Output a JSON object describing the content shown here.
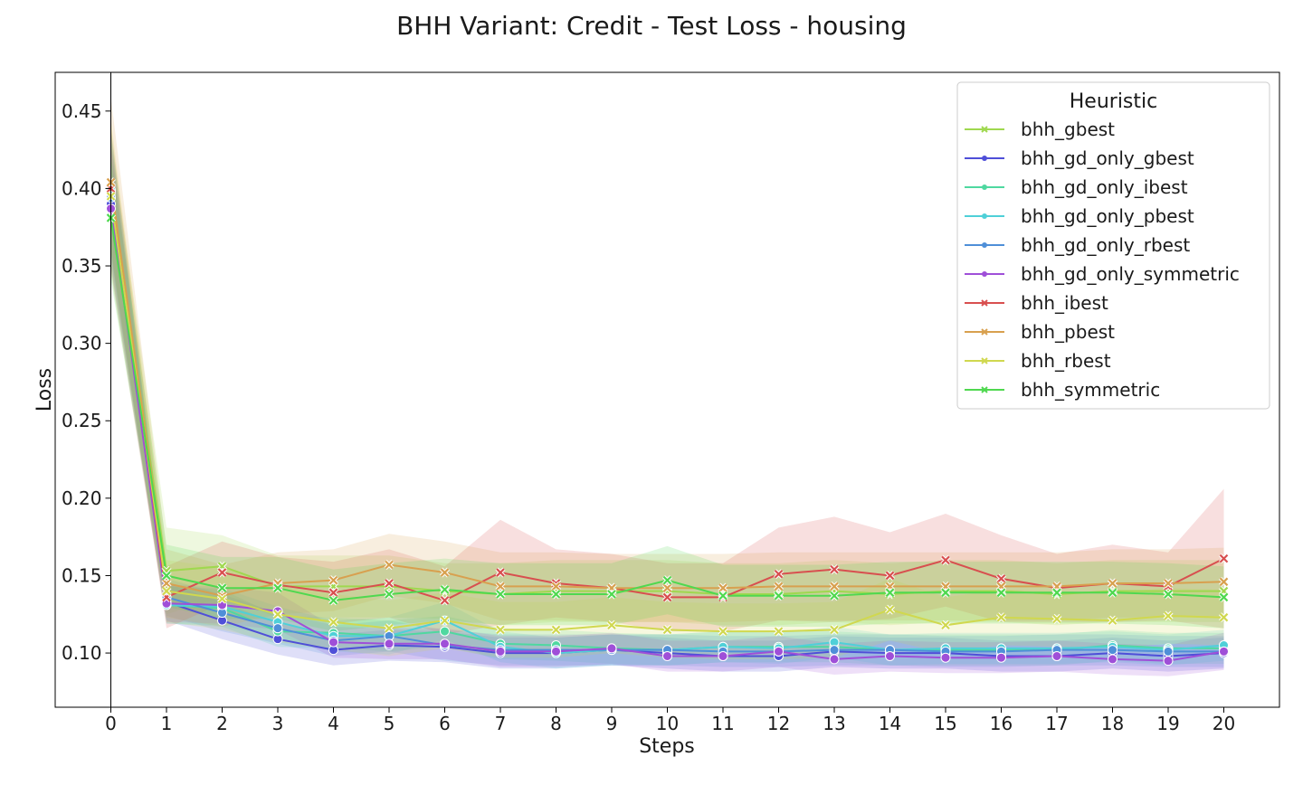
{
  "chart_data": {
    "type": "line",
    "title": "BHH Variant: Credit - Test Loss - housing",
    "xlabel": "Steps",
    "ylabel": "Loss",
    "x": [
      0,
      1,
      2,
      3,
      4,
      5,
      6,
      7,
      8,
      9,
      10,
      11,
      12,
      13,
      14,
      15,
      16,
      17,
      18,
      19,
      20
    ],
    "xlim": [
      -1,
      21
    ],
    "ylim": [
      0.065,
      0.475
    ],
    "yticks": [
      0.1,
      0.15,
      0.2,
      0.25,
      0.3,
      0.35,
      0.4,
      0.45
    ],
    "ytick_labels": [
      "0.10",
      "0.15",
      "0.20",
      "0.25",
      "0.30",
      "0.35",
      "0.40",
      "0.45"
    ],
    "xtick_labels": [
      "0",
      "1",
      "2",
      "3",
      "4",
      "5",
      "6",
      "7",
      "8",
      "9",
      "10",
      "11",
      "12",
      "13",
      "14",
      "15",
      "16",
      "17",
      "18",
      "19",
      "20"
    ],
    "grid": false,
    "legend": {
      "title": "Heuristic",
      "placement": "top-right"
    },
    "series": [
      {
        "name": "bhh_gbest",
        "color": "#9fd84f",
        "marker": "x",
        "values": [
          0.397,
          0.153,
          0.156,
          0.143,
          0.143,
          0.143,
          0.14,
          0.138,
          0.14,
          0.14,
          0.14,
          0.138,
          0.138,
          0.14,
          0.138,
          0.14,
          0.14,
          0.138,
          0.14,
          0.14,
          0.14
        ],
        "band": [
          0.035,
          0.028,
          0.02,
          0.02,
          0.02,
          0.02,
          0.018,
          0.02,
          0.02,
          0.02,
          0.02,
          0.02,
          0.02,
          0.02,
          0.02,
          0.02,
          0.02,
          0.02,
          0.02,
          0.02,
          0.02
        ]
      },
      {
        "name": "bhh_gd_only_gbest",
        "color": "#4f4fd8",
        "marker": "o",
        "values": [
          0.39,
          0.133,
          0.121,
          0.109,
          0.102,
          0.105,
          0.104,
          0.1,
          0.1,
          0.102,
          0.1,
          0.098,
          0.098,
          0.101,
          0.1,
          0.1,
          0.098,
          0.098,
          0.1,
          0.098,
          0.1
        ],
        "band": [
          0.04,
          0.012,
          0.012,
          0.01,
          0.01,
          0.01,
          0.01,
          0.01,
          0.01,
          0.01,
          0.01,
          0.01,
          0.01,
          0.01,
          0.01,
          0.01,
          0.01,
          0.01,
          0.01,
          0.01,
          0.01
        ]
      },
      {
        "name": "bhh_gd_only_ibest",
        "color": "#4fd8a0",
        "marker": "o",
        "values": [
          0.398,
          0.131,
          0.129,
          0.114,
          0.113,
          0.111,
          0.114,
          0.106,
          0.105,
          0.103,
          0.102,
          0.104,
          0.104,
          0.104,
          0.102,
          0.102,
          0.102,
          0.102,
          0.105,
          0.103,
          0.103
        ],
        "band": [
          0.04,
          0.012,
          0.012,
          0.01,
          0.01,
          0.01,
          0.01,
          0.01,
          0.01,
          0.01,
          0.01,
          0.01,
          0.01,
          0.01,
          0.01,
          0.01,
          0.01,
          0.01,
          0.01,
          0.01,
          0.01
        ]
      },
      {
        "name": "bhh_gd_only_pbest",
        "color": "#4fd0d8",
        "marker": "o",
        "values": [
          0.399,
          0.131,
          0.13,
          0.12,
          0.111,
          0.111,
          0.121,
          0.104,
          0.1,
          0.102,
          0.102,
          0.104,
          0.103,
          0.107,
          0.102,
          0.103,
          0.103,
          0.103,
          0.104,
          0.102,
          0.105
        ],
        "band": [
          0.04,
          0.012,
          0.012,
          0.01,
          0.01,
          0.012,
          0.012,
          0.01,
          0.01,
          0.01,
          0.01,
          0.01,
          0.01,
          0.01,
          0.01,
          0.01,
          0.01,
          0.01,
          0.01,
          0.01,
          0.01
        ]
      },
      {
        "name": "bhh_gd_only_rbest",
        "color": "#4f8fd8",
        "marker": "o",
        "values": [
          0.394,
          0.136,
          0.126,
          0.116,
          0.108,
          0.111,
          0.105,
          0.102,
          0.102,
          0.102,
          0.102,
          0.101,
          0.101,
          0.102,
          0.102,
          0.101,
          0.101,
          0.102,
          0.102,
          0.101,
          0.101
        ],
        "band": [
          0.04,
          0.012,
          0.012,
          0.01,
          0.01,
          0.01,
          0.01,
          0.01,
          0.01,
          0.01,
          0.01,
          0.01,
          0.01,
          0.01,
          0.01,
          0.01,
          0.01,
          0.01,
          0.01,
          0.01,
          0.01
        ]
      },
      {
        "name": "bhh_gd_only_symmetric",
        "color": "#9f4fd8",
        "marker": "o",
        "values": [
          0.387,
          0.132,
          0.131,
          0.127,
          0.107,
          0.106,
          0.106,
          0.101,
          0.101,
          0.103,
          0.098,
          0.098,
          0.101,
          0.096,
          0.098,
          0.097,
          0.097,
          0.098,
          0.096,
          0.095,
          0.101
        ],
        "band": [
          0.04,
          0.012,
          0.012,
          0.012,
          0.01,
          0.01,
          0.01,
          0.01,
          0.01,
          0.01,
          0.01,
          0.01,
          0.01,
          0.01,
          0.01,
          0.01,
          0.01,
          0.01,
          0.01,
          0.01,
          0.012
        ]
      },
      {
        "name": "bhh_ibest",
        "color": "#d84f4f",
        "marker": "x",
        "values": [
          0.4,
          0.136,
          0.152,
          0.144,
          0.139,
          0.145,
          0.134,
          0.152,
          0.145,
          0.142,
          0.136,
          0.136,
          0.151,
          0.154,
          0.15,
          0.16,
          0.148,
          0.142,
          0.145,
          0.143,
          0.161
        ],
        "band": [
          0.04,
          0.02,
          0.02,
          0.018,
          0.02,
          0.022,
          0.022,
          0.034,
          0.022,
          0.022,
          0.022,
          0.022,
          0.03,
          0.034,
          0.028,
          0.03,
          0.028,
          0.022,
          0.025,
          0.022,
          0.045
        ]
      },
      {
        "name": "bhh_pbest",
        "color": "#d8a04f",
        "marker": "x",
        "values": [
          0.404,
          0.145,
          0.137,
          0.145,
          0.147,
          0.157,
          0.152,
          0.143,
          0.143,
          0.142,
          0.142,
          0.142,
          0.143,
          0.143,
          0.143,
          0.143,
          0.143,
          0.143,
          0.145,
          0.145,
          0.146
        ],
        "band": [
          0.055,
          0.022,
          0.02,
          0.02,
          0.02,
          0.02,
          0.02,
          0.022,
          0.022,
          0.022,
          0.022,
          0.022,
          0.022,
          0.022,
          0.022,
          0.022,
          0.022,
          0.022,
          0.022,
          0.022,
          0.022
        ]
      },
      {
        "name": "bhh_rbest",
        "color": "#d0d84f",
        "marker": "x",
        "values": [
          0.395,
          0.14,
          0.135,
          0.125,
          0.12,
          0.116,
          0.121,
          0.115,
          0.115,
          0.118,
          0.115,
          0.114,
          0.114,
          0.115,
          0.128,
          0.118,
          0.123,
          0.122,
          0.121,
          0.124,
          0.123
        ],
        "band": [
          0.05,
          0.02,
          0.02,
          0.018,
          0.018,
          0.018,
          0.018,
          0.018,
          0.018,
          0.018,
          0.018,
          0.018,
          0.018,
          0.018,
          0.02,
          0.018,
          0.018,
          0.018,
          0.018,
          0.018,
          0.018
        ]
      },
      {
        "name": "bhh_symmetric",
        "color": "#4fd84f",
        "marker": "x",
        "values": [
          0.381,
          0.15,
          0.142,
          0.142,
          0.134,
          0.138,
          0.141,
          0.138,
          0.138,
          0.138,
          0.147,
          0.137,
          0.137,
          0.137,
          0.139,
          0.139,
          0.139,
          0.139,
          0.139,
          0.138,
          0.136
        ],
        "band": [
          0.04,
          0.02,
          0.02,
          0.02,
          0.02,
          0.02,
          0.02,
          0.02,
          0.02,
          0.02,
          0.022,
          0.02,
          0.02,
          0.02,
          0.02,
          0.02,
          0.02,
          0.02,
          0.02,
          0.02,
          0.02
        ]
      }
    ]
  }
}
